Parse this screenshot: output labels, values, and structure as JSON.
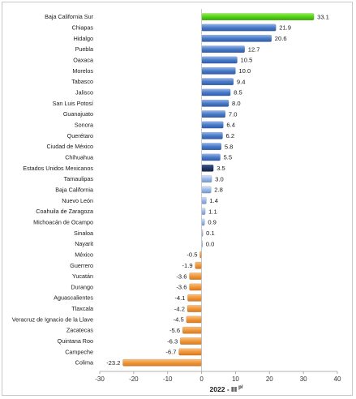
{
  "chart_data": {
    "type": "bar",
    "orientation": "horizontal",
    "categories": [
      "Baja California Sur",
      "Chiapas",
      "Hidalgo",
      "Puebla",
      "Oaxaca",
      "Morelos",
      "Tabasco",
      "Jalisco",
      "San Luis Potosí",
      "Guanajuato",
      "Sonora",
      "Querétaro",
      "Ciudad de México",
      "Chihuahua",
      "Estados Unidos Mexicanos",
      "Tamaulipas",
      "Baja California",
      "Nuevo León",
      "Coahuila de Zaragoza",
      "Michoacán de Ocampo",
      "Sinaloa",
      "Nayarit",
      "México",
      "Guerrero",
      "Yucatán",
      "Durango",
      "Aguascalientes",
      "Tlaxcala",
      "Veracruz de Ignacio de la Llave",
      "Zacatecas",
      "Quintana Roo",
      "Campeche",
      "Colima"
    ],
    "values": [
      33.1,
      21.9,
      20.6,
      12.7,
      10.5,
      10.0,
      9.4,
      8.5,
      8.0,
      7.0,
      6.4,
      6.2,
      5.8,
      5.5,
      3.5,
      3.0,
      2.8,
      1.4,
      1.1,
      0.9,
      0.1,
      0.0,
      -0.5,
      -1.9,
      -3.6,
      -3.6,
      -4.1,
      -4.2,
      -4.5,
      -5.6,
      -6.3,
      -6.7,
      -23.2
    ],
    "value_labels": [
      "33.1",
      "21.9",
      "20.6",
      "12.7",
      "10.5",
      "10.0",
      "9.4",
      "8.5",
      "8.0",
      "7.0",
      "6.4",
      "6.2",
      "5.8",
      "5.5",
      "3.5",
      "3.0",
      "2.8",
      "1.4",
      "1.1",
      "0.9",
      "0.1",
      "0.0",
      "-0.5",
      "-1.9",
      "-3.6",
      "-3.6",
      "-4.1",
      "-4.2",
      "-4.5",
      "-5.6",
      "-6.3",
      "-6.7",
      "-23.2"
    ],
    "xlim": [
      -30,
      40
    ],
    "xticks": [
      -30,
      -20,
      -10,
      0,
      10,
      20,
      30,
      40
    ],
    "xlabel": "2022 - III",
    "xlabel_superscript": "p/",
    "grid": false,
    "colors": {
      "highest": "#66dd22",
      "positive": "#4a7bc8",
      "national": "#1f3864",
      "near_zero": "#9ab8e6",
      "negative": "#f0973a"
    }
  }
}
